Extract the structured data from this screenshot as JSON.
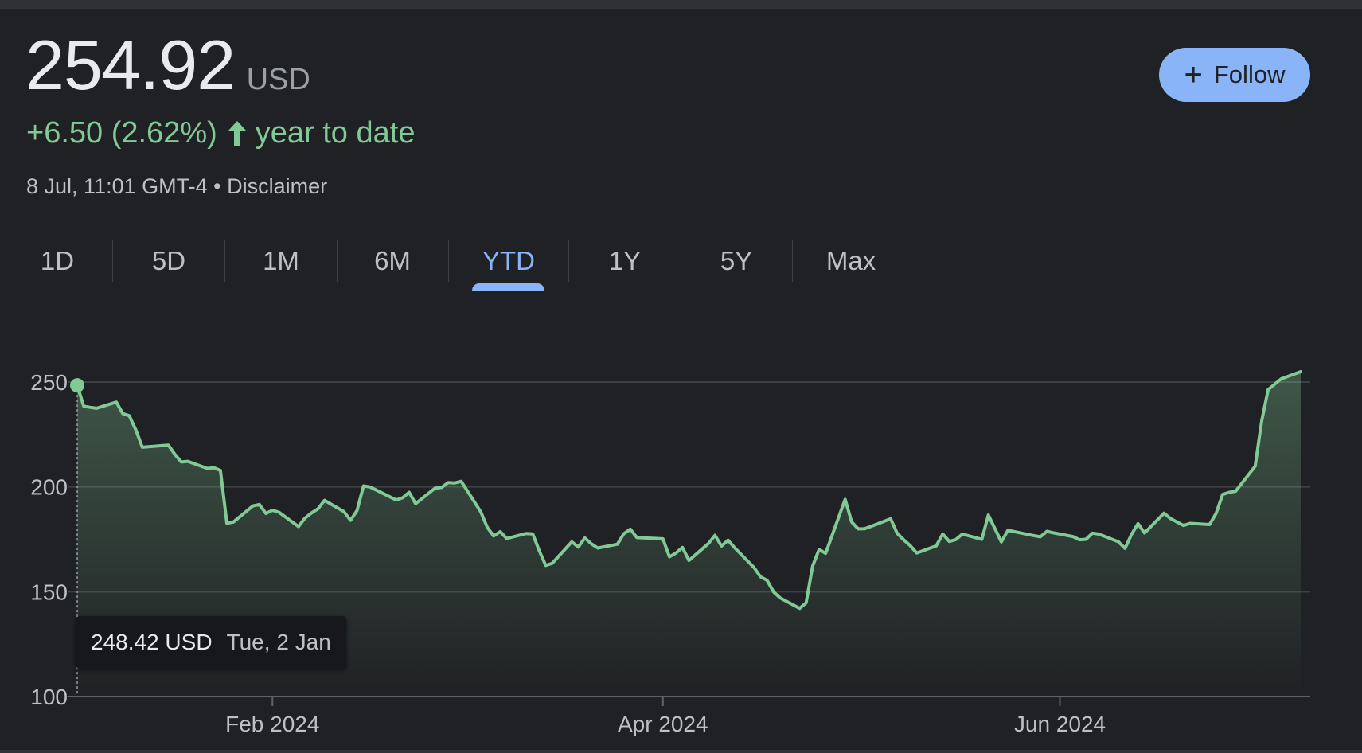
{
  "quote": {
    "price": "254.92",
    "currency": "USD",
    "change": "+6.50 (2.62%)",
    "change_direction_icon": "arrow-up-icon",
    "period_label": "year to date",
    "timestamp": "8 Jul, 11:01 GMT-4",
    "separator": " • ",
    "disclaimer_label": "Disclaimer"
  },
  "follow_button": {
    "icon": "plus-icon",
    "label": "Follow"
  },
  "tabs": [
    {
      "label": "1D",
      "active": false
    },
    {
      "label": "5D",
      "active": false
    },
    {
      "label": "1M",
      "active": false
    },
    {
      "label": "6M",
      "active": false
    },
    {
      "label": "YTD",
      "active": true
    },
    {
      "label": "1Y",
      "active": false
    },
    {
      "label": "5Y",
      "active": false
    },
    {
      "label": "Max",
      "active": false
    }
  ],
  "tooltip": {
    "price": "248.42 USD",
    "date": "Tue, 2 Jan"
  },
  "colors": {
    "positive": "#81c995",
    "accent": "#8ab4f8",
    "background": "#202124"
  },
  "chart_data": {
    "type": "area",
    "x_start": "2024-01-02",
    "x_end": "2024-07-08",
    "ylim": [
      100,
      260
    ],
    "yticks": [
      100,
      150,
      200,
      250
    ],
    "ytick_labels": [
      "100",
      "150",
      "200",
      "250"
    ],
    "xticks": [
      "2024-02-01",
      "2024-04-01",
      "2024-06-01"
    ],
    "xtick_labels": [
      "Feb 2024",
      "Apr 2024",
      "Jun 2024"
    ],
    "grid": true,
    "highlighted_point": {
      "date": "2024-01-02",
      "value": 248.42
    },
    "series": [
      {
        "dates": [
          "2024-01-02",
          "2024-01-03",
          "2024-01-04",
          "2024-01-05",
          "2024-01-08",
          "2024-01-09",
          "2024-01-10",
          "2024-01-11",
          "2024-01-12",
          "2024-01-16",
          "2024-01-17",
          "2024-01-18",
          "2024-01-19",
          "2024-01-22",
          "2024-01-23",
          "2024-01-24",
          "2024-01-25",
          "2024-01-26",
          "2024-01-29",
          "2024-01-30",
          "2024-01-31",
          "2024-02-01",
          "2024-02-02",
          "2024-02-05",
          "2024-02-06",
          "2024-02-07",
          "2024-02-08",
          "2024-02-09",
          "2024-02-12",
          "2024-02-13",
          "2024-02-14",
          "2024-02-15",
          "2024-02-16",
          "2024-02-20",
          "2024-02-21",
          "2024-02-22",
          "2024-02-23",
          "2024-02-26",
          "2024-02-27",
          "2024-02-28",
          "2024-02-29",
          "2024-03-01",
          "2024-03-04",
          "2024-03-05",
          "2024-03-06",
          "2024-03-07",
          "2024-03-08",
          "2024-03-11",
          "2024-03-12",
          "2024-03-13",
          "2024-03-14",
          "2024-03-15",
          "2024-03-18",
          "2024-03-19",
          "2024-03-20",
          "2024-03-21",
          "2024-03-22",
          "2024-03-25",
          "2024-03-26",
          "2024-03-27",
          "2024-03-28",
          "2024-04-01",
          "2024-04-02",
          "2024-04-03",
          "2024-04-04",
          "2024-04-05",
          "2024-04-08",
          "2024-04-09",
          "2024-04-10",
          "2024-04-11",
          "2024-04-12",
          "2024-04-15",
          "2024-04-16",
          "2024-04-17",
          "2024-04-18",
          "2024-04-19",
          "2024-04-22",
          "2024-04-23",
          "2024-04-24",
          "2024-04-25",
          "2024-04-26",
          "2024-04-29",
          "2024-04-30",
          "2024-05-01",
          "2024-05-02",
          "2024-05-03",
          "2024-05-06",
          "2024-05-07",
          "2024-05-08",
          "2024-05-09",
          "2024-05-10",
          "2024-05-13",
          "2024-05-14",
          "2024-05-15",
          "2024-05-16",
          "2024-05-17",
          "2024-05-20",
          "2024-05-21",
          "2024-05-22",
          "2024-05-23",
          "2024-05-24",
          "2024-05-28",
          "2024-05-29",
          "2024-05-30",
          "2024-05-31",
          "2024-06-03",
          "2024-06-04",
          "2024-06-05",
          "2024-06-06",
          "2024-06-07",
          "2024-06-10",
          "2024-06-11",
          "2024-06-12",
          "2024-06-13",
          "2024-06-14",
          "2024-06-17",
          "2024-06-18",
          "2024-06-20",
          "2024-06-21",
          "2024-06-24",
          "2024-06-25",
          "2024-06-26",
          "2024-06-27",
          "2024-06-28",
          "2024-07-01",
          "2024-07-02",
          "2024-07-03",
          "2024-07-05",
          "2024-07-08"
        ],
        "values": [
          248.42,
          238.45,
          237.93,
          237.49,
          240.45,
          234.96,
          233.94,
          227.22,
          218.89,
          219.91,
          215.55,
          211.88,
          212.19,
          208.8,
          209.14,
          207.83,
          182.63,
          183.25,
          190.93,
          191.59,
          187.29,
          188.86,
          187.91,
          181.06,
          185.1,
          187.58,
          189.56,
          193.57,
          188.13,
          184.02,
          188.71,
          200.45,
          199.95,
          193.76,
          194.77,
          197.41,
          191.97,
          199.4,
          199.73,
          202.04,
          201.88,
          202.64,
          188.14,
          180.74,
          176.54,
          178.65,
          175.34,
          177.77,
          177.54,
          169.48,
          162.5,
          163.57,
          173.8,
          171.32,
          175.66,
          172.82,
          170.83,
          172.63,
          177.67,
          179.83,
          175.79,
          175.22,
          166.63,
          168.38,
          171.11,
          164.9,
          172.98,
          176.88,
          171.76,
          174.6,
          171.05,
          161.48,
          157.11,
          155.45,
          149.93,
          147.05,
          142.05,
          144.68,
          162.13,
          170.18,
          168.29,
          194.05,
          183.28,
          179.99,
          180.01,
          181.19,
          184.76,
          177.81,
          174.72,
          171.97,
          168.47,
          171.89,
          177.55,
          173.99,
          174.84,
          177.46,
          174.95,
          186.6,
          180.11,
          173.74,
          179.24,
          176.75,
          176.19,
          178.79,
          178.08,
          176.29,
          174.77,
          175.0,
          177.94,
          177.48,
          173.79,
          170.66,
          177.29,
          182.47,
          178.01,
          187.44,
          184.86,
          181.57,
          182.58,
          182.01,
          187.35,
          196.37,
          197.42,
          197.88,
          209.86,
          231.26,
          246.39,
          251.52,
          254.92
        ]
      }
    ]
  }
}
